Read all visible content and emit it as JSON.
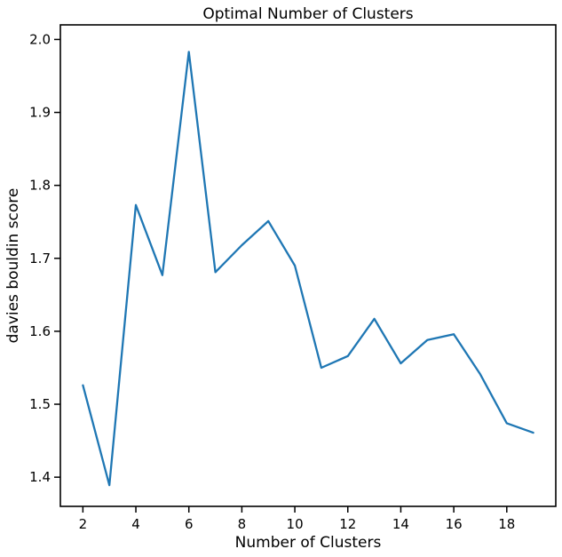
{
  "chart_data": {
    "type": "line",
    "title": "Optimal Number of Clusters",
    "xlabel": "Number of Clusters",
    "ylabel": "davies bouldin score",
    "xlim": [
      1.15,
      19.85
    ],
    "ylim": [
      1.36,
      2.02
    ],
    "x_ticks": [
      2,
      4,
      6,
      8,
      10,
      12,
      14,
      16,
      18
    ],
    "y_ticks": [
      1.4,
      1.5,
      1.6,
      1.7,
      1.8,
      1.9,
      2.0
    ],
    "y_tick_labels": [
      "1.4",
      "1.5",
      "1.6",
      "1.7",
      "1.8",
      "1.9",
      "2.0"
    ],
    "grid": false,
    "legend": "none",
    "series": [
      {
        "color": "#1f77b4",
        "x": [
          2,
          3,
          4,
          5,
          6,
          7,
          8,
          9,
          10,
          11,
          12,
          13,
          14,
          15,
          16,
          17,
          18,
          19
        ],
        "y": [
          1.526,
          1.389,
          1.773,
          1.677,
          1.983,
          1.681,
          1.718,
          1.751,
          1.69,
          1.55,
          1.566,
          1.617,
          1.556,
          1.588,
          1.596,
          1.541,
          1.474,
          1.461
        ]
      }
    ]
  }
}
